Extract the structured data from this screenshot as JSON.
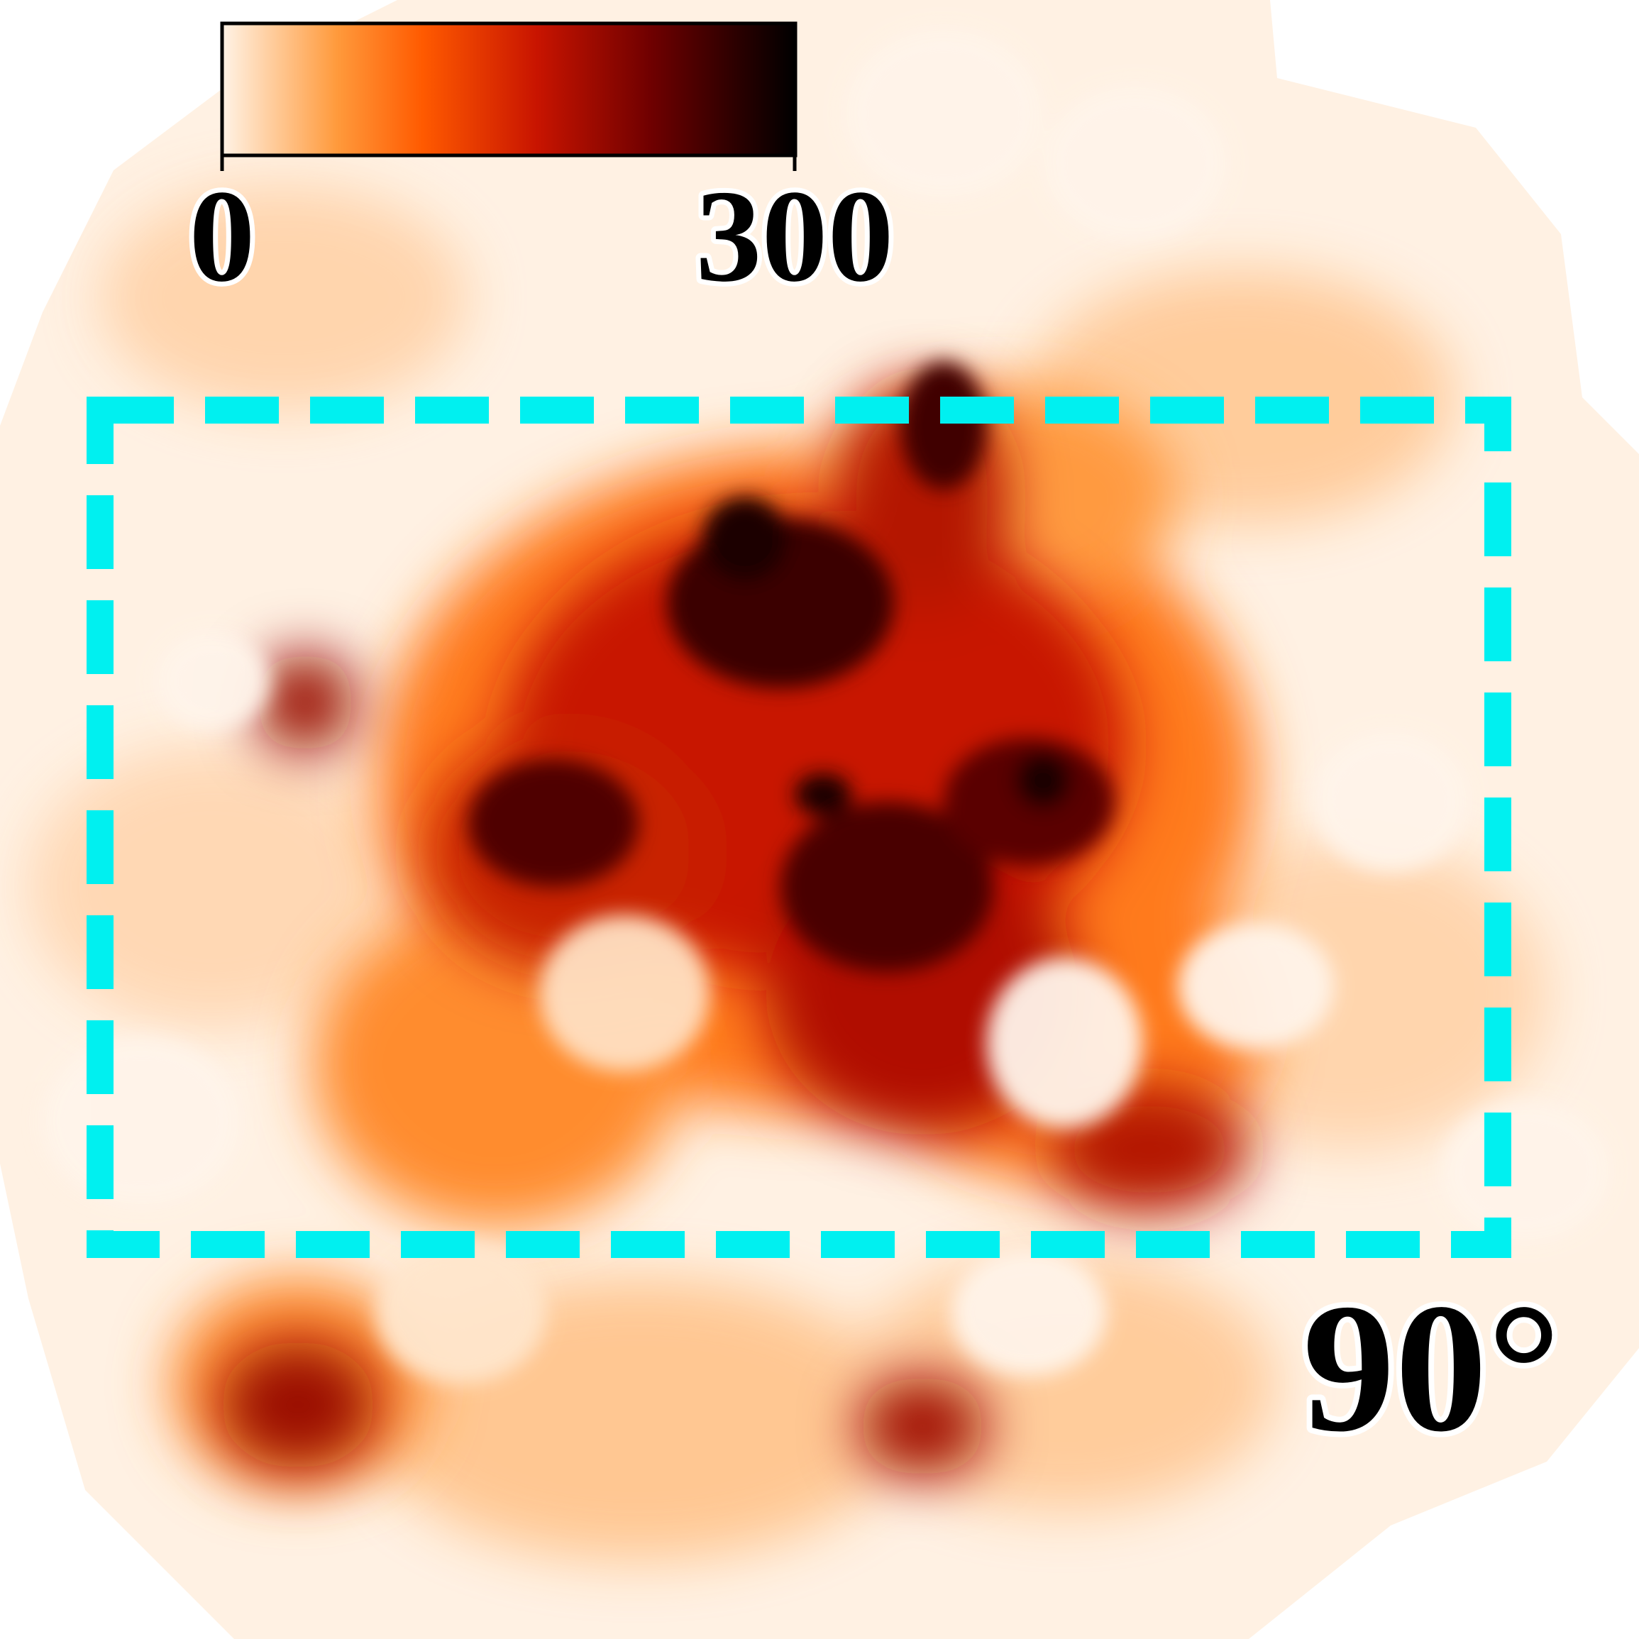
{
  "colorbar": {
    "min_label": "0",
    "max_label": "300",
    "colors": [
      "#fff3e6",
      "#ff9a3c",
      "#ff5a00",
      "#c81400",
      "#6e0000",
      "#2a0000",
      "#000000"
    ]
  },
  "angle_label": "90°",
  "highlight_box": {
    "color": "#00f0f0",
    "style": "dashed"
  },
  "map_palette": {
    "background": "#ffffff",
    "low": "#fff1e3",
    "mid": "#ff8a2a",
    "high": "#b01000",
    "peak": "#1a0000"
  }
}
